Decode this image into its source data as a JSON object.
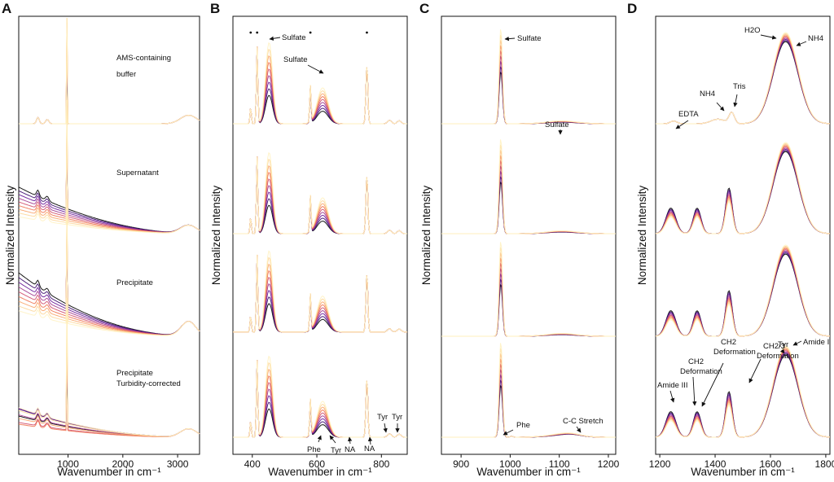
{
  "figure": {
    "ylabel": "Normalized Intensity",
    "xlabel": "Wavenumber in cm⁻¹",
    "colors": {
      "ramp": [
        "#000000",
        "#3b0a6e",
        "#6a1b9a",
        "#a23b8f",
        "#d0506e",
        "#ef7452",
        "#f9a56a",
        "#fdd79a",
        "#fff2c2"
      ]
    }
  },
  "chart_data": [
    {
      "panel": "A",
      "type": "line",
      "xlabel": "Wavenumber in cm⁻¹",
      "ylabel": "Normalized Intensity",
      "xlim": [
        100,
        3400
      ],
      "xticks": [
        1000,
        2000,
        3000
      ],
      "xtick_labels": [
        "1000",
        "2000",
        "3000"
      ],
      "n_series": 9,
      "stacks": [
        {
          "label": "AMS-containing buffer",
          "features": [
            "sharp line near 981"
          ]
        },
        {
          "label": "Supernatant",
          "features": [
            "sloping fluorescence background"
          ]
        },
        {
          "label": "Precipitate",
          "features": [
            "strong sloping background"
          ]
        },
        {
          "label": "Precipitate Turbidity-corrected",
          "features": [
            "reduced background"
          ]
        }
      ],
      "annotations": []
    },
    {
      "panel": "B",
      "type": "line",
      "xlabel": "Wavenumber in cm⁻¹",
      "ylabel": "Normalized Intensity",
      "xlim": [
        340,
        880
      ],
      "xticks": [
        400,
        600,
        800
      ],
      "xtick_labels": [
        "400",
        "600",
        "800"
      ],
      "n_series": 9,
      "peaks": [
        {
          "x": 395,
          "kind": "star"
        },
        {
          "x": 415,
          "kind": "star"
        },
        {
          "x": 450,
          "kind": "sulfate"
        },
        {
          "x": 580,
          "kind": "star"
        },
        {
          "x": 615,
          "kind": "sulfate"
        },
        {
          "x": 755,
          "kind": "star"
        }
      ],
      "annotations": [
        {
          "text": "Sulfate",
          "x": 450
        },
        {
          "text": "Sulfate",
          "x": 615
        },
        {
          "text": "Phe",
          "x": 622
        },
        {
          "text": "Tyr",
          "x": 643
        },
        {
          "text": "NA",
          "x": 728
        },
        {
          "text": "NA",
          "x": 785
        },
        {
          "text": "Tyr",
          "x": 830
        },
        {
          "text": "Tyr",
          "x": 853
        }
      ]
    },
    {
      "panel": "C",
      "type": "line",
      "xlabel": "Wavenumber in cm⁻¹",
      "ylabel": "Normalized Intensity",
      "xlim": [
        860,
        1215
      ],
      "xticks": [
        900,
        1000,
        1100,
        1200
      ],
      "xtick_labels": [
        "900",
        "1000",
        "1100",
        "1200"
      ],
      "n_series": 9,
      "peaks": [
        {
          "x": 981,
          "kind": "sulfate"
        },
        {
          "x": 1105,
          "kind": "sulfate-broad"
        }
      ],
      "annotations": [
        {
          "text": "Sulfate",
          "x": 981
        },
        {
          "text": "Sulfate",
          "x": 1105
        },
        {
          "text": "Phe",
          "x": 1003
        },
        {
          "text": "C-C Stretch",
          "x": 1125
        }
      ]
    },
    {
      "panel": "D",
      "type": "line",
      "xlabel": "Wavenumber in cm⁻¹",
      "ylabel": "Normalized Intensity",
      "xlim": [
        1185,
        1815
      ],
      "xticks": [
        1200,
        1400,
        1600,
        1800
      ],
      "xtick_labels": [
        "1200",
        "1400",
        "1600",
        "1800"
      ],
      "n_series": 9,
      "annotations": [
        {
          "text": "H2O",
          "x": 1640
        },
        {
          "text": "NH4",
          "x": 1710
        },
        {
          "text": "NH4",
          "x": 1400
        },
        {
          "text": "Tris",
          "x": 1460
        },
        {
          "text": "EDTA",
          "x": 1250
        },
        {
          "text": "Amide III",
          "x": 1245
        },
        {
          "text": "CH2 Deformation",
          "x": 1320
        },
        {
          "text": "CH2 Deformation",
          "x": 1340
        },
        {
          "text": "CH2/3 Deformation",
          "x": 1450
        },
        {
          "text": "Tyr",
          "x": 1615
        },
        {
          "text": "Amide I",
          "x": 1660
        }
      ]
    }
  ],
  "annotation_texts": {
    "A": [
      "AMS-containing",
      "buffer",
      "Supernatant",
      "Precipitate",
      "Precipitate",
      "Turbidity-corrected"
    ],
    "B": [
      "Sulfate",
      "Sulfate",
      "Phe",
      "Tyr",
      "NA",
      "NA",
      "Tyr",
      "Tyr"
    ],
    "C": [
      "Sulfate",
      "Sulfate",
      "Phe",
      "C-C Stretch"
    ],
    "D": [
      "H2O",
      "NH4",
      "NH4",
      "Tris",
      "EDTA",
      "Amide III",
      "CH2",
      "Deformation",
      "CH2",
      "Deformation",
      "CH2/3",
      "Deformation",
      "Tyr",
      "Amide I"
    ]
  },
  "panel_letters": [
    "A",
    "B",
    "C",
    "D"
  ]
}
